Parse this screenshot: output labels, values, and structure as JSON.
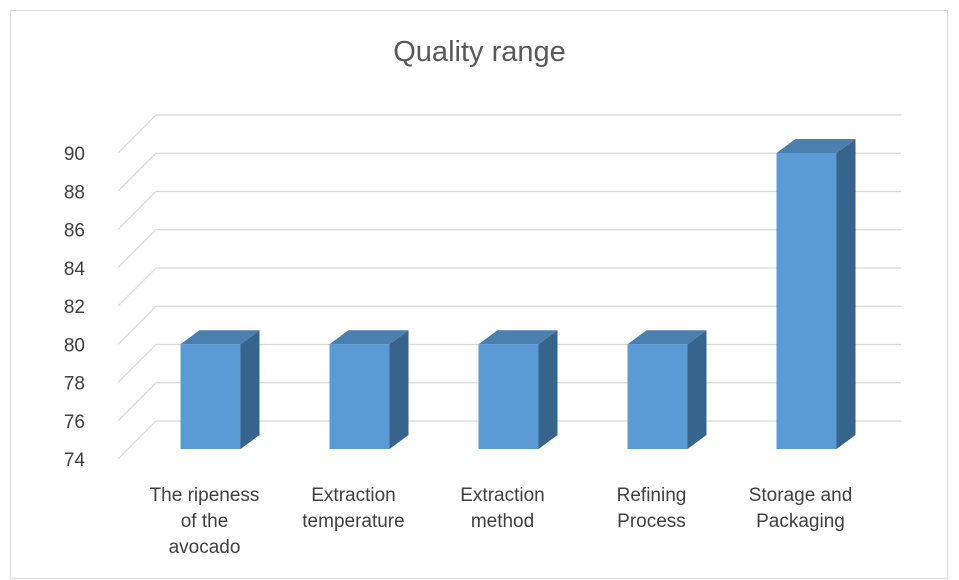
{
  "chart_data": {
    "type": "bar",
    "title": "Quality range",
    "categories": [
      [
        "The ripeness",
        "of the",
        "avocado"
      ],
      [
        "Extraction",
        "temperature"
      ],
      [
        "Extraction",
        "method"
      ],
      [
        "Refining",
        "Process"
      ],
      [
        "Storage and",
        "Packaging"
      ]
    ],
    "values": [
      80,
      80,
      80,
      80,
      90
    ],
    "ylim": [
      74,
      90
    ],
    "yticks": [
      74,
      76,
      78,
      80,
      82,
      84,
      86,
      88,
      90
    ],
    "grid": true,
    "legend": "none",
    "style": "3d-column",
    "colors": {
      "bar_front": "#5b9bd5",
      "bar_top": "#4a7fb0",
      "bar_side": "#36648c",
      "grid": "#d9d9d9",
      "text": "#404040",
      "title": "#595959"
    }
  }
}
